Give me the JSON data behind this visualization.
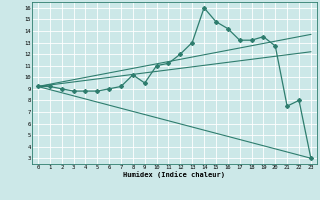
{
  "title": "",
  "xlabel": "Humidex (Indice chaleur)",
  "bg_color": "#cce8e8",
  "line_color": "#2e7d6e",
  "grid_color": "#ffffff",
  "xlim": [
    -0.5,
    23.5
  ],
  "ylim": [
    2.5,
    16.5
  ],
  "xticks": [
    0,
    1,
    2,
    3,
    4,
    5,
    6,
    7,
    8,
    9,
    10,
    11,
    12,
    13,
    14,
    15,
    16,
    17,
    18,
    19,
    20,
    21,
    22,
    23
  ],
  "yticks": [
    3,
    4,
    5,
    6,
    7,
    8,
    9,
    10,
    11,
    12,
    13,
    14,
    15,
    16
  ],
  "line1_x": [
    0,
    1,
    2,
    3,
    4,
    5,
    6,
    7,
    8,
    9,
    10,
    11,
    12,
    13,
    14,
    15,
    16,
    17,
    18,
    19,
    20,
    21,
    22,
    23
  ],
  "line1_y": [
    9.2,
    9.2,
    9.0,
    8.8,
    8.8,
    8.8,
    9.0,
    9.2,
    10.2,
    9.5,
    11.0,
    11.2,
    12.0,
    13.0,
    16.0,
    14.8,
    14.2,
    13.2,
    13.2,
    13.5,
    12.7,
    7.5,
    8.0,
    3.0
  ],
  "line2_x": [
    0,
    23
  ],
  "line2_y": [
    9.2,
    12.2
  ],
  "line3_x": [
    0,
    23
  ],
  "line3_y": [
    9.2,
    13.7
  ],
  "line4_x": [
    0,
    23
  ],
  "line4_y": [
    9.2,
    3.0
  ]
}
